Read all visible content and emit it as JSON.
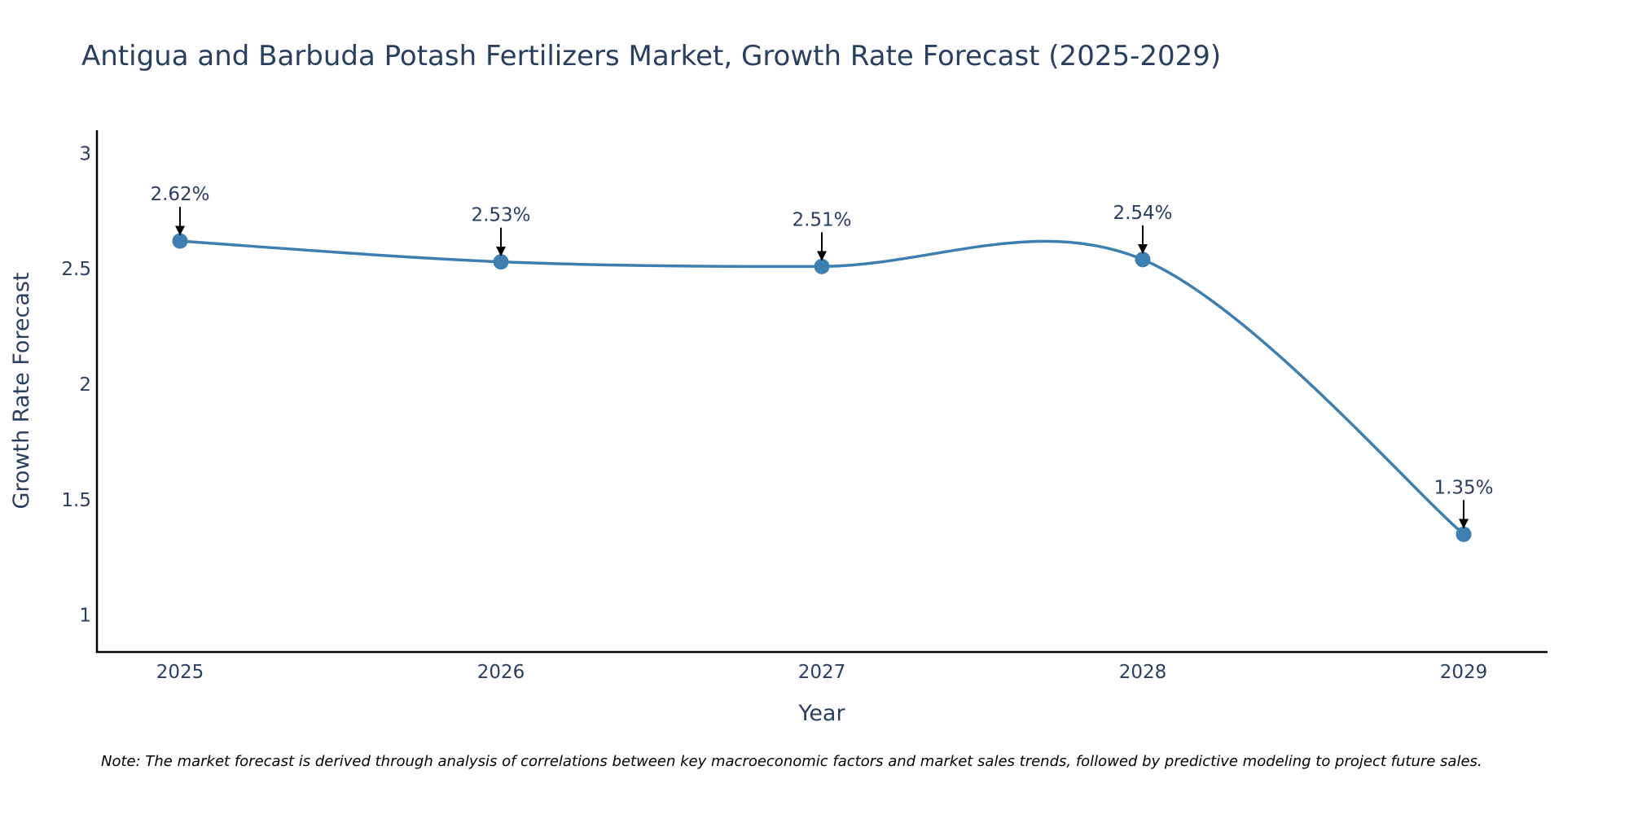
{
  "chart_data": {
    "type": "line",
    "title": "Antigua and Barbuda Potash Fertilizers Market, Growth Rate Forecast (2025-2029)",
    "xlabel": "Year",
    "ylabel": "Growth Rate Forecast",
    "categories": [
      "2025",
      "2026",
      "2027",
      "2028",
      "2029"
    ],
    "values": [
      2.62,
      2.53,
      2.51,
      2.54,
      1.35
    ],
    "data_labels": [
      "2.62%",
      "2.53%",
      "2.51%",
      "2.54%",
      "1.35%"
    ],
    "yticks": [
      "1",
      "1.5",
      "2",
      "2.5",
      "3"
    ],
    "ylim": [
      0.84,
      3.1
    ],
    "line_shape": "spline",
    "grid": false,
    "legend": "none",
    "note": "Note: The market forecast is derived through analysis of correlations between key macroeconomic factors and market sales trends, followed by predictive modeling to project future sales."
  },
  "colors": {
    "series": "#3d7fb0",
    "text": "#2a3f5f",
    "axis": "#000000",
    "arrow": "#000000"
  }
}
